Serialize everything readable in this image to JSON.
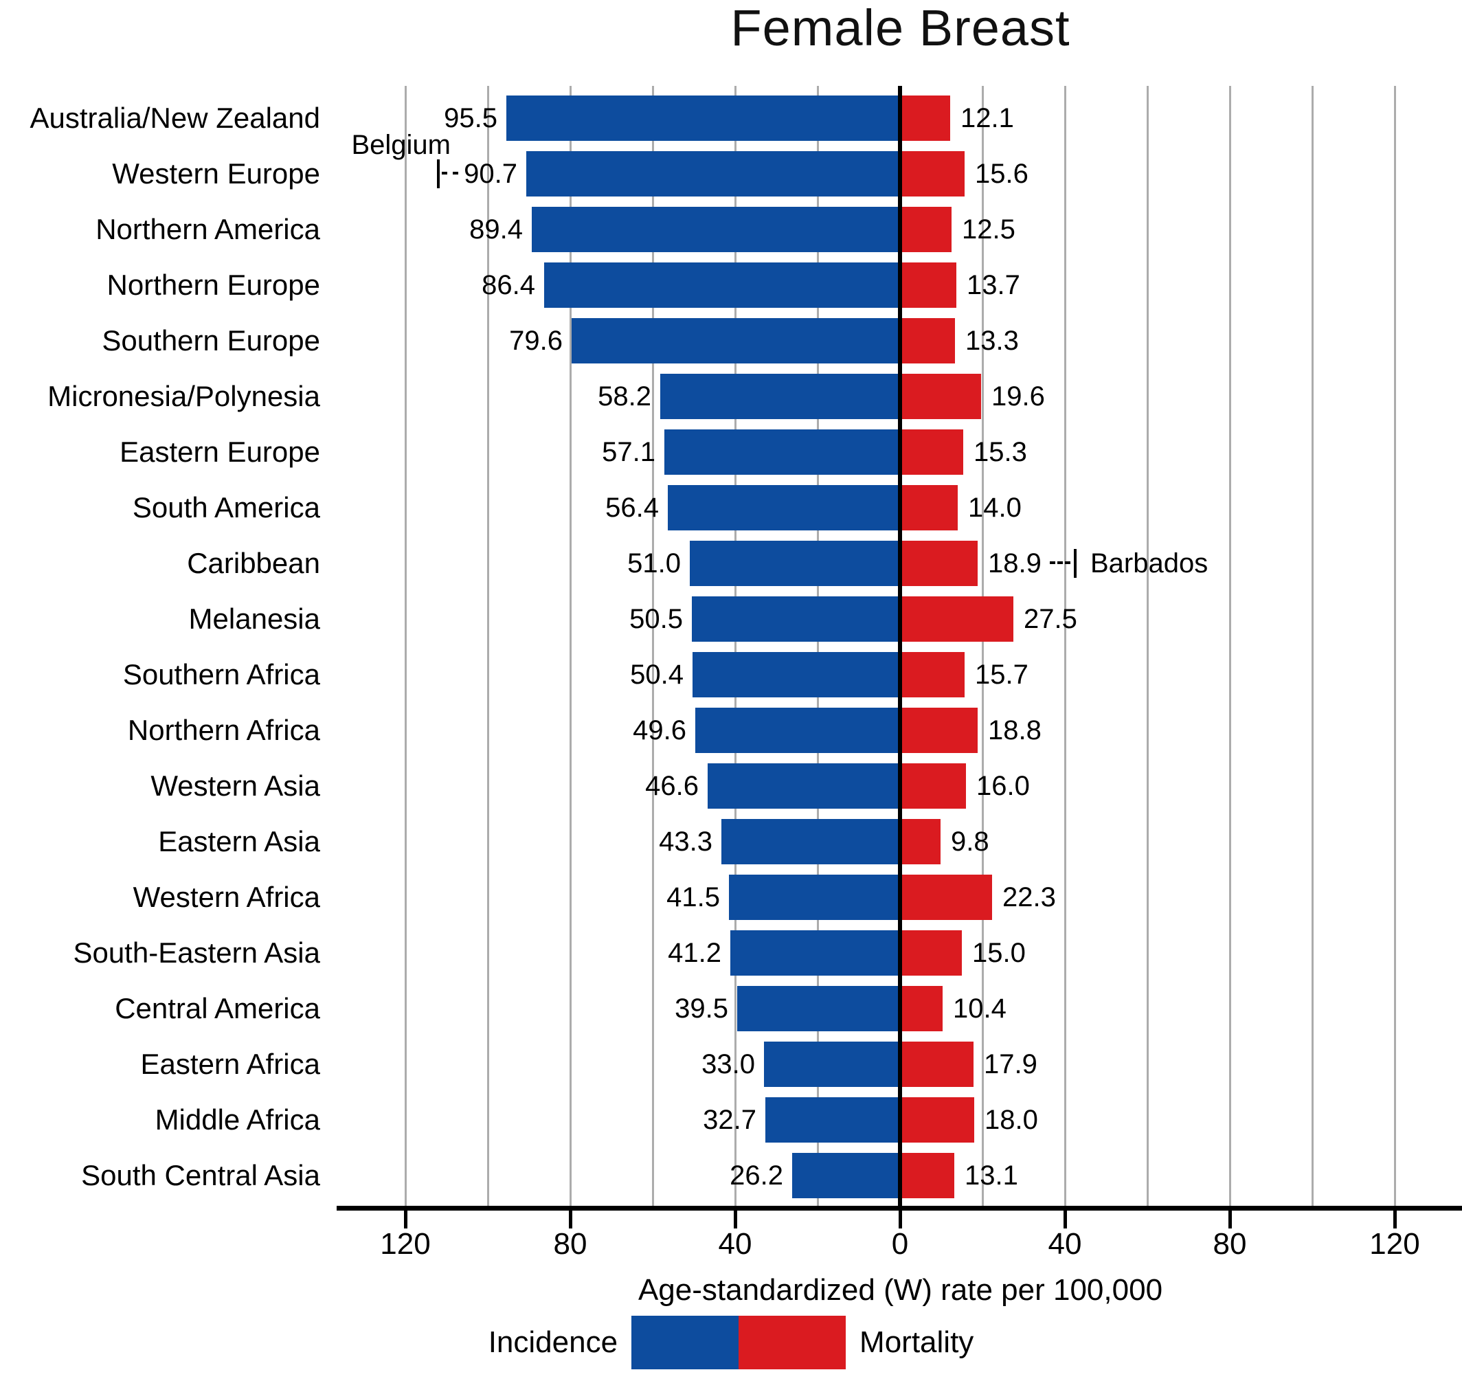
{
  "chart_data": {
    "type": "bar",
    "variant": "diverging-horizontal",
    "title": "Female Breast",
    "xlabel": "Age-standardized (W) rate per 100,000",
    "categories": [
      "Australia/New Zealand",
      "Western Europe",
      "Northern America",
      "Northern Europe",
      "Southern Europe",
      "Micronesia/Polynesia",
      "Eastern Europe",
      "South America",
      "Caribbean",
      "Melanesia",
      "Southern Africa",
      "Northern Africa",
      "Western Asia",
      "Eastern Asia",
      "Western Africa",
      "South-Eastern Asia",
      "Central America",
      "Eastern Africa",
      "Middle Africa",
      "South Central Asia"
    ],
    "series": [
      {
        "name": "Incidence",
        "side": "left",
        "color": "#0D4C9E",
        "values": [
          95.5,
          90.7,
          89.4,
          86.4,
          79.6,
          58.2,
          57.1,
          56.4,
          51.0,
          50.5,
          50.4,
          49.6,
          46.6,
          43.3,
          41.5,
          41.2,
          39.5,
          33.0,
          32.7,
          26.2
        ]
      },
      {
        "name": "Mortality",
        "side": "right",
        "color": "#DA1B20",
        "values": [
          12.1,
          15.6,
          12.5,
          13.7,
          13.3,
          19.6,
          15.3,
          14.0,
          18.9,
          27.5,
          15.7,
          18.8,
          16.0,
          9.8,
          22.3,
          15.0,
          10.4,
          17.9,
          18.0,
          13.1
        ]
      }
    ],
    "x_axis": {
      "ticks": [
        {
          "pos": -120,
          "label": "120"
        },
        {
          "pos": -80,
          "label": "80"
        },
        {
          "pos": -40,
          "label": "40"
        },
        {
          "pos": 0,
          "label": "0"
        },
        {
          "pos": 40,
          "label": "40"
        },
        {
          "pos": 80,
          "label": "80"
        },
        {
          "pos": 120,
          "label": "120"
        }
      ],
      "gridline_step": 20,
      "range": [
        -136,
        136
      ],
      "grid": true
    },
    "annotations": [
      {
        "label": "Belgium",
        "category": "Western Europe",
        "side": "left",
        "axis_value": 112,
        "placement": "above"
      },
      {
        "label": "Barbados",
        "category": "Caribbean",
        "side": "right",
        "axis_value": 42.5,
        "placement": "right"
      }
    ],
    "legend": {
      "incidence": "Incidence",
      "mortality": "Mortality"
    },
    "legend_position": "bottom"
  },
  "colors": {
    "incidence": "#0D4C9E",
    "mortality": "#DA1B20",
    "gridline": "#ACACAC",
    "axis": "#000000"
  }
}
